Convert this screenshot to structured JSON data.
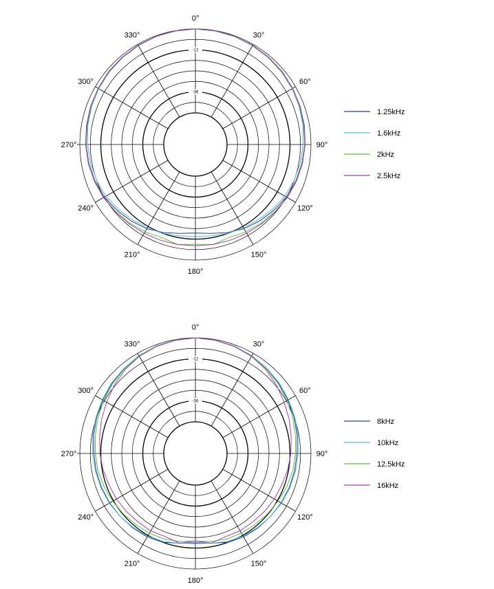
{
  "chart_data": [
    {
      "type": "polar",
      "angle_labels": [
        "0°",
        "30°",
        "60°",
        "90°",
        "120°",
        "150°",
        "180°",
        "210°",
        "240°",
        "270°",
        "300°",
        "330°"
      ],
      "db_labels": [
        "-12",
        "-36"
      ],
      "r_range_db": [
        -48,
        0
      ],
      "legend_placement": "right",
      "series": [
        {
          "name": "1.25kHz",
          "color": "#27408b",
          "angles": [
            0,
            10,
            20,
            30,
            40,
            50,
            60,
            70,
            80,
            90,
            100,
            110,
            120,
            130,
            140,
            150,
            160,
            170,
            180,
            190,
            200,
            210,
            220,
            230,
            240,
            250,
            260,
            270,
            280,
            290,
            300,
            310,
            320,
            330,
            340,
            350
          ],
          "values": [
            0,
            -0.2,
            -0.4,
            -0.8,
            -1.2,
            -1.7,
            -2.2,
            -2.7,
            -3.2,
            -3.6,
            -4.2,
            -5.0,
            -6.0,
            -7.5,
            -9.0,
            -10.5,
            -12.5,
            -14.5,
            -15.5,
            -14.5,
            -12.5,
            -10.5,
            -9.0,
            -7.5,
            -6.0,
            -5.0,
            -4.2,
            -3.6,
            -3.2,
            -2.7,
            -2.2,
            -1.7,
            -1.2,
            -0.8,
            -0.4,
            -0.2
          ]
        },
        {
          "name": "1.6kHz",
          "color": "#4fb6d6",
          "angles": [
            0,
            10,
            20,
            30,
            40,
            50,
            60,
            70,
            80,
            90,
            100,
            110,
            120,
            130,
            140,
            150,
            160,
            170,
            180,
            190,
            200,
            210,
            220,
            230,
            240,
            250,
            260,
            270,
            280,
            290,
            300,
            310,
            320,
            330,
            340,
            350
          ],
          "values": [
            0,
            -0.2,
            -0.4,
            -0.7,
            -1.1,
            -1.6,
            -2.2,
            -2.9,
            -3.6,
            -4.5,
            -5.2,
            -6.0,
            -7.0,
            -8.5,
            -10.0,
            -11.0,
            -12.0,
            -13.0,
            -13.5,
            -13.0,
            -12.0,
            -11.0,
            -10.0,
            -8.5,
            -7.0,
            -6.0,
            -5.2,
            -4.5,
            -3.6,
            -2.9,
            -2.2,
            -1.6,
            -1.1,
            -0.7,
            -0.4,
            -0.2
          ]
        },
        {
          "name": "2kHz",
          "color": "#5cbf3a",
          "angles": [
            0,
            10,
            20,
            30,
            40,
            50,
            60,
            70,
            80,
            90,
            100,
            110,
            120,
            130,
            140,
            150,
            160,
            170,
            180,
            190,
            200,
            210,
            220,
            230,
            240,
            250,
            260,
            270,
            280,
            290,
            300,
            310,
            320,
            330,
            340,
            350
          ],
          "values": [
            0,
            -0.1,
            -0.3,
            -0.6,
            -1.0,
            -1.5,
            -2.0,
            -2.5,
            -3.0,
            -3.5,
            -4.0,
            -4.8,
            -5.5,
            -6.5,
            -7.5,
            -8.5,
            -9.5,
            -8.0,
            -9.0,
            -8.0,
            -9.5,
            -8.5,
            -7.5,
            -6.5,
            -5.5,
            -4.8,
            -4.0,
            -3.5,
            -3.0,
            -2.5,
            -2.0,
            -1.5,
            -1.0,
            -0.6,
            -0.3,
            -0.1
          ]
        },
        {
          "name": "2.5kHz",
          "color": "#a83aa8",
          "angles": [
            0,
            10,
            20,
            30,
            40,
            50,
            60,
            70,
            80,
            90,
            100,
            110,
            120,
            130,
            140,
            150,
            160,
            170,
            180,
            190,
            200,
            210,
            220,
            230,
            240,
            250,
            260,
            270,
            280,
            290,
            300,
            310,
            320,
            330,
            340,
            350
          ],
          "values": [
            0,
            -0.1,
            -0.3,
            -0.5,
            -0.9,
            -1.3,
            -1.8,
            -2.3,
            -2.8,
            -3.3,
            -3.9,
            -4.6,
            -5.4,
            -6.3,
            -7.0,
            -7.5,
            -7.8,
            -8.0,
            -8.2,
            -8.0,
            -7.8,
            -7.5,
            -7.0,
            -6.3,
            -5.4,
            -4.6,
            -3.9,
            -3.3,
            -2.8,
            -2.3,
            -1.8,
            -1.3,
            -0.9,
            -0.5,
            -0.3,
            -0.1
          ]
        }
      ]
    },
    {
      "type": "polar",
      "angle_labels": [
        "0°",
        "30°",
        "60°",
        "90°",
        "120°",
        "150°",
        "180°",
        "210°",
        "240°",
        "270°",
        "300°",
        "330°"
      ],
      "db_labels": [
        "-12",
        "-36"
      ],
      "r_range_db": [
        -48,
        0
      ],
      "legend_placement": "right",
      "series": [
        {
          "name": "8kHz",
          "color": "#27408b",
          "angles": [
            0,
            10,
            20,
            30,
            40,
            50,
            60,
            70,
            80,
            90,
            100,
            110,
            120,
            130,
            140,
            150,
            160,
            170,
            180,
            190,
            200,
            210,
            220,
            230,
            240,
            250,
            260,
            270,
            280,
            290,
            300,
            310,
            320,
            330,
            340,
            350
          ],
          "values": [
            0,
            -0.3,
            -0.8,
            -1.6,
            -2.6,
            -3.8,
            -5.0,
            -6.0,
            -7.0,
            -8.0,
            -8.5,
            -9.0,
            -9.5,
            -10.0,
            -10.5,
            -11.0,
            -12.0,
            -14.0,
            -15.0,
            -14.0,
            -12.0,
            -11.0,
            -10.5,
            -10.0,
            -9.5,
            -9.0,
            -8.5,
            -8.0,
            -7.0,
            -6.0,
            -5.0,
            -3.8,
            -2.6,
            -1.6,
            -0.8,
            -0.3
          ]
        },
        {
          "name": "10kHz",
          "color": "#4fb6d6",
          "angles": [
            0,
            10,
            20,
            30,
            40,
            50,
            60,
            70,
            80,
            90,
            100,
            110,
            120,
            130,
            140,
            150,
            160,
            170,
            180,
            190,
            200,
            210,
            220,
            230,
            240,
            250,
            260,
            270,
            280,
            290,
            300,
            310,
            320,
            330,
            340,
            350
          ],
          "values": [
            0,
            -0.3,
            -0.8,
            -1.5,
            -2.5,
            -3.5,
            -4.6,
            -5.6,
            -6.5,
            -7.3,
            -8.0,
            -8.6,
            -9.2,
            -10.0,
            -10.8,
            -11.5,
            -12.5,
            -14.0,
            -14.5,
            -14.0,
            -12.5,
            -11.5,
            -10.8,
            -10.0,
            -9.2,
            -8.6,
            -8.0,
            -7.3,
            -6.5,
            -5.6,
            -4.6,
            -3.5,
            -2.5,
            -1.5,
            -0.8,
            -0.3
          ]
        },
        {
          "name": "12.5kHz",
          "color": "#5cbf3a",
          "angles": [
            0,
            10,
            20,
            30,
            40,
            50,
            60,
            70,
            80,
            90,
            100,
            110,
            120,
            130,
            140,
            150,
            160,
            170,
            180,
            190,
            200,
            210,
            220,
            230,
            240,
            250,
            260,
            270,
            280,
            290,
            300,
            310,
            320,
            330,
            340,
            350
          ],
          "values": [
            0,
            -0.3,
            -0.9,
            -1.8,
            -3.0,
            -4.3,
            -5.6,
            -6.8,
            -8.0,
            -8.8,
            -9.5,
            -10.5,
            -11.5,
            -12.3,
            -13.0,
            -13.5,
            -14.0,
            -15.0,
            -16.0,
            -15.0,
            -14.0,
            -13.5,
            -13.0,
            -12.3,
            -11.5,
            -10.5,
            -9.5,
            -8.8,
            -8.0,
            -6.8,
            -5.6,
            -4.3,
            -3.0,
            -1.8,
            -0.9,
            -0.3
          ]
        },
        {
          "name": "16kHz",
          "color": "#a83aa8",
          "angles": [
            0,
            10,
            20,
            30,
            40,
            50,
            60,
            70,
            80,
            90,
            100,
            110,
            120,
            130,
            140,
            150,
            160,
            170,
            180,
            190,
            200,
            210,
            220,
            230,
            240,
            250,
            260,
            270,
            280,
            290,
            300,
            310,
            320,
            330,
            340,
            350
          ],
          "values": [
            0,
            -0.4,
            -1.0,
            -2.0,
            -3.5,
            -5.5,
            -7.5,
            -9.0,
            -10.5,
            -11.5,
            -12.5,
            -13.5,
            -14.0,
            -14.5,
            -15.0,
            -15.0,
            -15.5,
            -14.0,
            -16.0,
            -14.0,
            -15.5,
            -15.0,
            -15.0,
            -14.5,
            -14.0,
            -13.5,
            -12.5,
            -11.5,
            -10.5,
            -9.0,
            -7.5,
            -5.5,
            -3.5,
            -2.0,
            -1.0,
            -0.4
          ]
        }
      ]
    }
  ]
}
